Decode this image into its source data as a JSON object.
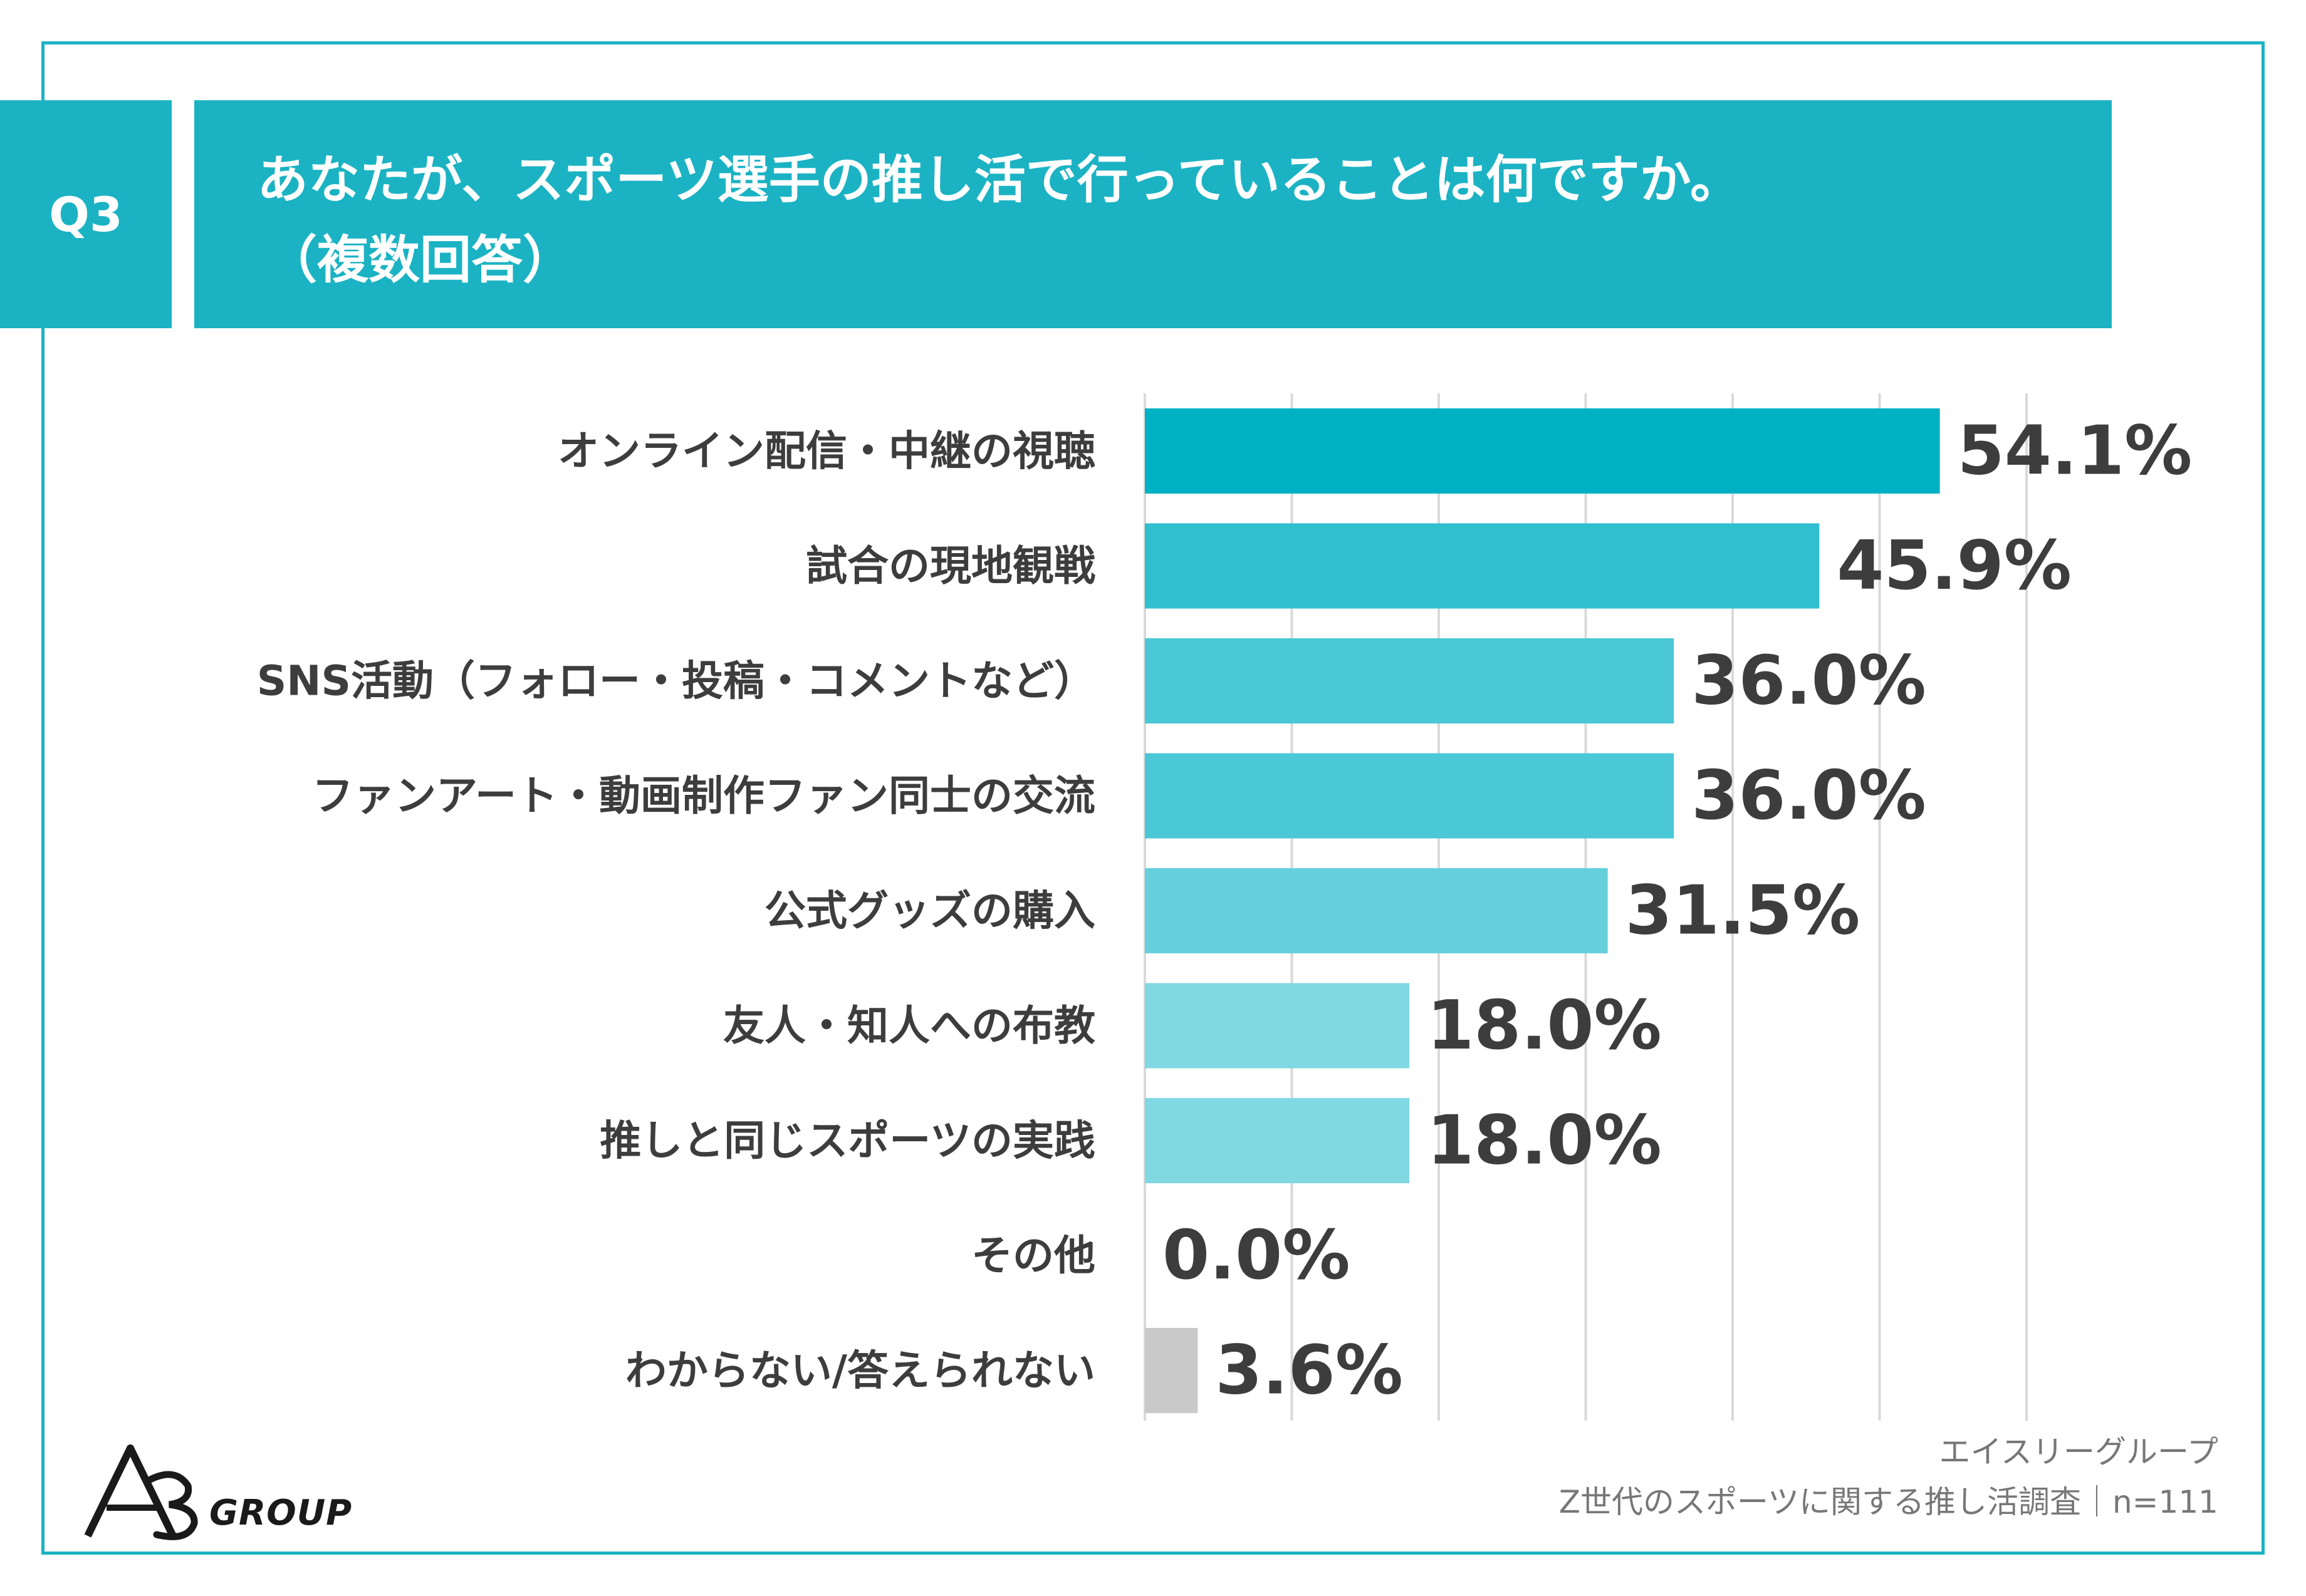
{
  "header": {
    "badge": "Q3",
    "title_line1": "あなたが、スポーツ選手の推し活で行っていることは何ですか。",
    "title_line2": "（複数回答）"
  },
  "colors": {
    "accent": "#1bb3c3",
    "gray_bar": "#c9c9c9"
  },
  "chart_data": {
    "type": "bar",
    "orientation": "horizontal",
    "categories": [
      "オンライン配信・中継の視聴",
      "試合の現地観戦",
      "SNS活動（フォロー・投稿・コメントなど）",
      "ファンアート・動画制作ファン同士の交流",
      "公式グッズの購入",
      "友人・知人への布教",
      "推しと同じスポーツの実践",
      "その他",
      "わからない/答えられない"
    ],
    "values": [
      54.1,
      45.9,
      36.0,
      36.0,
      31.5,
      18.0,
      18.0,
      0.0,
      3.6
    ],
    "value_labels": [
      "54.1%",
      "45.9%",
      "36.0%",
      "36.0%",
      "31.5%",
      "18.0%",
      "18.0%",
      "0.0%",
      "3.6%"
    ],
    "bar_colors": [
      "#00b1c3",
      "#2fbfcf",
      "#4ac8d5",
      "#4ac8d5",
      "#65d0dc",
      "#80d8e2",
      "#80d8e2",
      "#80d8e2",
      "#c9c9c9"
    ],
    "xlim": [
      0,
      60
    ],
    "grid": true,
    "legend": "none"
  },
  "footer": {
    "line1": "エイスリーグループ",
    "line2": "Z世代のスポーツに関する推し活調査｜n=111"
  },
  "logo": {
    "mark": "A3",
    "word": "GROUP"
  }
}
